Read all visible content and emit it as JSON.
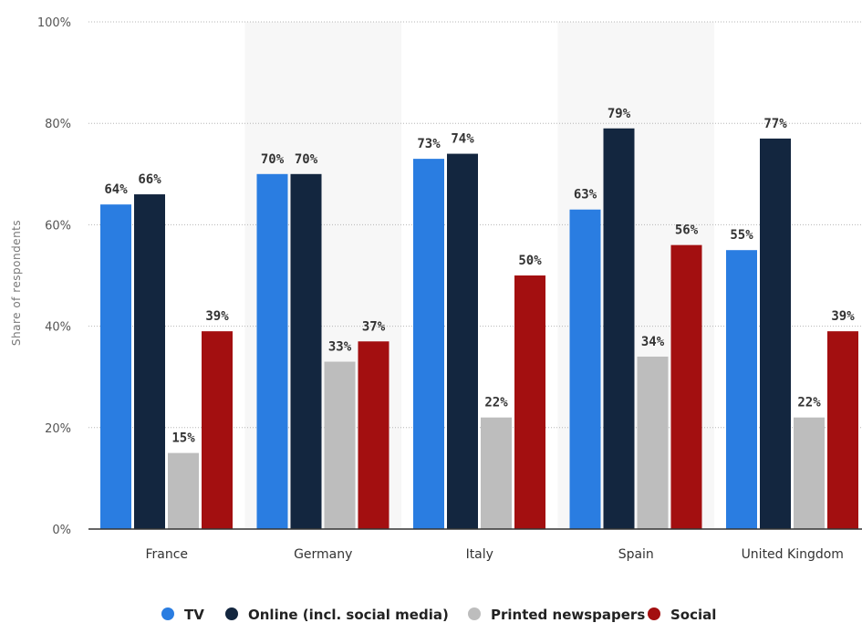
{
  "chart_data": {
    "type": "bar",
    "title": "",
    "xlabel": "",
    "ylabel": "Share of respondents",
    "ylim": [
      0,
      100
    ],
    "yticks": [
      0,
      20,
      40,
      60,
      80,
      100
    ],
    "ytick_suffix": "%",
    "value_suffix": "%",
    "grid": true,
    "legend_position": "bottom",
    "categories": [
      "France",
      "Germany",
      "Italy",
      "Spain",
      "United Kingdom"
    ],
    "series": [
      {
        "name": "TV",
        "color": "#2a7de1",
        "values": [
          64,
          70,
          73,
          63,
          55
        ]
      },
      {
        "name": "Online (incl. social media)",
        "color": "#13263f",
        "values": [
          66,
          70,
          74,
          79,
          77
        ]
      },
      {
        "name": "Printed newspapers",
        "color": "#bdbdbd",
        "values": [
          15,
          33,
          22,
          34,
          22
        ]
      },
      {
        "name": "Social",
        "color": "#a30f10",
        "values": [
          39,
          37,
          50,
          56,
          39
        ]
      }
    ],
    "band_color": "#f7f7f7"
  }
}
